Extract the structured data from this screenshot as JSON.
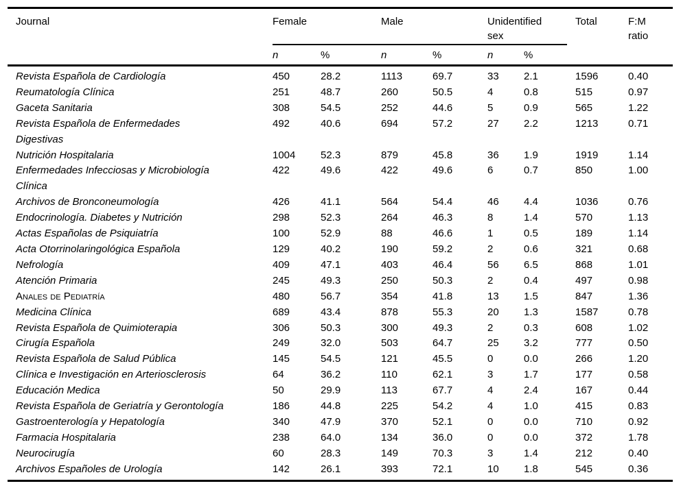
{
  "colors": {
    "text": "#000000",
    "background": "#ffffff",
    "rule": "#000000"
  },
  "table": {
    "header": {
      "journal": "Journal",
      "groups": [
        {
          "label": "Female"
        },
        {
          "label": "Male"
        },
        {
          "label": "Unidentified sex"
        }
      ],
      "sub": {
        "n": "n",
        "pct": "%"
      },
      "total": "Total",
      "fm_ratio": "F:M ratio"
    },
    "rows": [
      {
        "journal": "Revista Española de Cardiología",
        "female_n": "450",
        "female_pct": "28.2",
        "male_n": "1113",
        "male_pct": "69.7",
        "unid_n": "33",
        "unid_pct": "2.1",
        "total": "1596",
        "fm_ratio": "0.40"
      },
      {
        "journal": "Reumatología Clínica",
        "female_n": "251",
        "female_pct": "48.7",
        "male_n": "260",
        "male_pct": "50.5",
        "unid_n": "4",
        "unid_pct": "0.8",
        "total": "515",
        "fm_ratio": "0.97"
      },
      {
        "journal": "Gaceta Sanitaria",
        "female_n": "308",
        "female_pct": "54.5",
        "male_n": "252",
        "male_pct": "44.6",
        "unid_n": "5",
        "unid_pct": "0.9",
        "total": "565",
        "fm_ratio": "1.22"
      },
      {
        "journal": "Revista Española de Enfermedades Digestivas",
        "female_n": "492",
        "female_pct": "40.6",
        "male_n": "694",
        "male_pct": "57.2",
        "unid_n": "27",
        "unid_pct": "2.2",
        "total": "1213",
        "fm_ratio": "0.71"
      },
      {
        "journal": "Nutrición Hospitalaria",
        "female_n": "1004",
        "female_pct": "52.3",
        "male_n": "879",
        "male_pct": "45.8",
        "unid_n": "36",
        "unid_pct": "1.9",
        "total": "1919",
        "fm_ratio": "1.14"
      },
      {
        "journal": "Enfermedades Infecciosas y Microbiología Clínica",
        "female_n": "422",
        "female_pct": "49.6",
        "male_n": "422",
        "male_pct": "49.6",
        "unid_n": "6",
        "unid_pct": "0.7",
        "total": "850",
        "fm_ratio": "1.00"
      },
      {
        "journal": "Archivos de Bronconeumología",
        "female_n": "426",
        "female_pct": "41.1",
        "male_n": "564",
        "male_pct": "54.4",
        "unid_n": "46",
        "unid_pct": "4.4",
        "total": "1036",
        "fm_ratio": "0.76"
      },
      {
        "journal": "Endocrinología. Diabetes y Nutrición",
        "female_n": "298",
        "female_pct": "52.3",
        "male_n": "264",
        "male_pct": "46.3",
        "unid_n": "8",
        "unid_pct": "1.4",
        "total": "570",
        "fm_ratio": "1.13"
      },
      {
        "journal": "Actas Españolas de Psiquiatría",
        "female_n": "100",
        "female_pct": "52.9",
        "male_n": "88",
        "male_pct": "46.6",
        "unid_n": "1",
        "unid_pct": "0.5",
        "total": "189",
        "fm_ratio": "1.14"
      },
      {
        "journal": "Acta Otorrinolaringológica Española",
        "female_n": "129",
        "female_pct": "40.2",
        "male_n": "190",
        "male_pct": "59.2",
        "unid_n": "2",
        "unid_pct": "0.6",
        "total": "321",
        "fm_ratio": "0.68"
      },
      {
        "journal": "Nefrología",
        "female_n": "409",
        "female_pct": "47.1",
        "male_n": "403",
        "male_pct": "46.4",
        "unid_n": "56",
        "unid_pct": "6.5",
        "total": "868",
        "fm_ratio": "1.01"
      },
      {
        "journal": "Atención Primaria",
        "female_n": "245",
        "female_pct": "49.3",
        "male_n": "250",
        "male_pct": "50.3",
        "unid_n": "2",
        "unid_pct": "0.4",
        "total": "497",
        "fm_ratio": "0.98"
      },
      {
        "journal": "Anales de Pediatría",
        "variant": "smallcaps",
        "female_n": "480",
        "female_pct": "56.7",
        "male_n": "354",
        "male_pct": "41.8",
        "unid_n": "13",
        "unid_pct": "1.5",
        "total": "847",
        "fm_ratio": "1.36"
      },
      {
        "journal": "Medicina Clínica",
        "female_n": "689",
        "female_pct": "43.4",
        "male_n": "878",
        "male_pct": "55.3",
        "unid_n": "20",
        "unid_pct": "1.3",
        "total": "1587",
        "fm_ratio": "0.78"
      },
      {
        "journal": "Revista Española de Quimioterapia",
        "female_n": "306",
        "female_pct": "50.3",
        "male_n": "300",
        "male_pct": "49.3",
        "unid_n": "2",
        "unid_pct": "0.3",
        "total": "608",
        "fm_ratio": "1.02"
      },
      {
        "journal": "Cirugía Española",
        "female_n": "249",
        "female_pct": "32.0",
        "male_n": "503",
        "male_pct": "64.7",
        "unid_n": "25",
        "unid_pct": "3.2",
        "total": "777",
        "fm_ratio": "0.50"
      },
      {
        "journal": "Revista Española de Salud Pública",
        "female_n": "145",
        "female_pct": "54.5",
        "male_n": "121",
        "male_pct": "45.5",
        "unid_n": "0",
        "unid_pct": "0.0",
        "total": "266",
        "fm_ratio": "1.20"
      },
      {
        "journal": "Clínica e Investigación en Arteriosclerosis",
        "female_n": "64",
        "female_pct": "36.2",
        "male_n": "110",
        "male_pct": "62.1",
        "unid_n": "3",
        "unid_pct": "1.7",
        "total": "177",
        "fm_ratio": "0.58"
      },
      {
        "journal": "Educación Medica",
        "female_n": "50",
        "female_pct": "29.9",
        "male_n": "113",
        "male_pct": "67.7",
        "unid_n": "4",
        "unid_pct": "2.4",
        "total": "167",
        "fm_ratio": "0.44"
      },
      {
        "journal": "Revista Española de Geriatría y Gerontología",
        "female_n": "186",
        "female_pct": "44.8",
        "male_n": "225",
        "male_pct": "54.2",
        "unid_n": "4",
        "unid_pct": "1.0",
        "total": "415",
        "fm_ratio": "0.83"
      },
      {
        "journal": "Gastroenterología y Hepatología",
        "female_n": "340",
        "female_pct": "47.9",
        "male_n": "370",
        "male_pct": "52.1",
        "unid_n": "0",
        "unid_pct": "0.0",
        "total": "710",
        "fm_ratio": "0.92"
      },
      {
        "journal": "Farmacia Hospitalaria",
        "female_n": "238",
        "female_pct": "64.0",
        "male_n": "134",
        "male_pct": "36.0",
        "unid_n": "0",
        "unid_pct": "0.0",
        "total": "372",
        "fm_ratio": "1.78"
      },
      {
        "journal": "Neurocirugía",
        "female_n": "60",
        "female_pct": "28.3",
        "male_n": "149",
        "male_pct": "70.3",
        "unid_n": "3",
        "unid_pct": "1.4",
        "total": "212",
        "fm_ratio": "0.40"
      },
      {
        "journal": "Archivos Españoles de Urología",
        "female_n": "142",
        "female_pct": "26.1",
        "male_n": "393",
        "male_pct": "72.1",
        "unid_n": "10",
        "unid_pct": "1.8",
        "total": "545",
        "fm_ratio": "0.36"
      }
    ]
  }
}
